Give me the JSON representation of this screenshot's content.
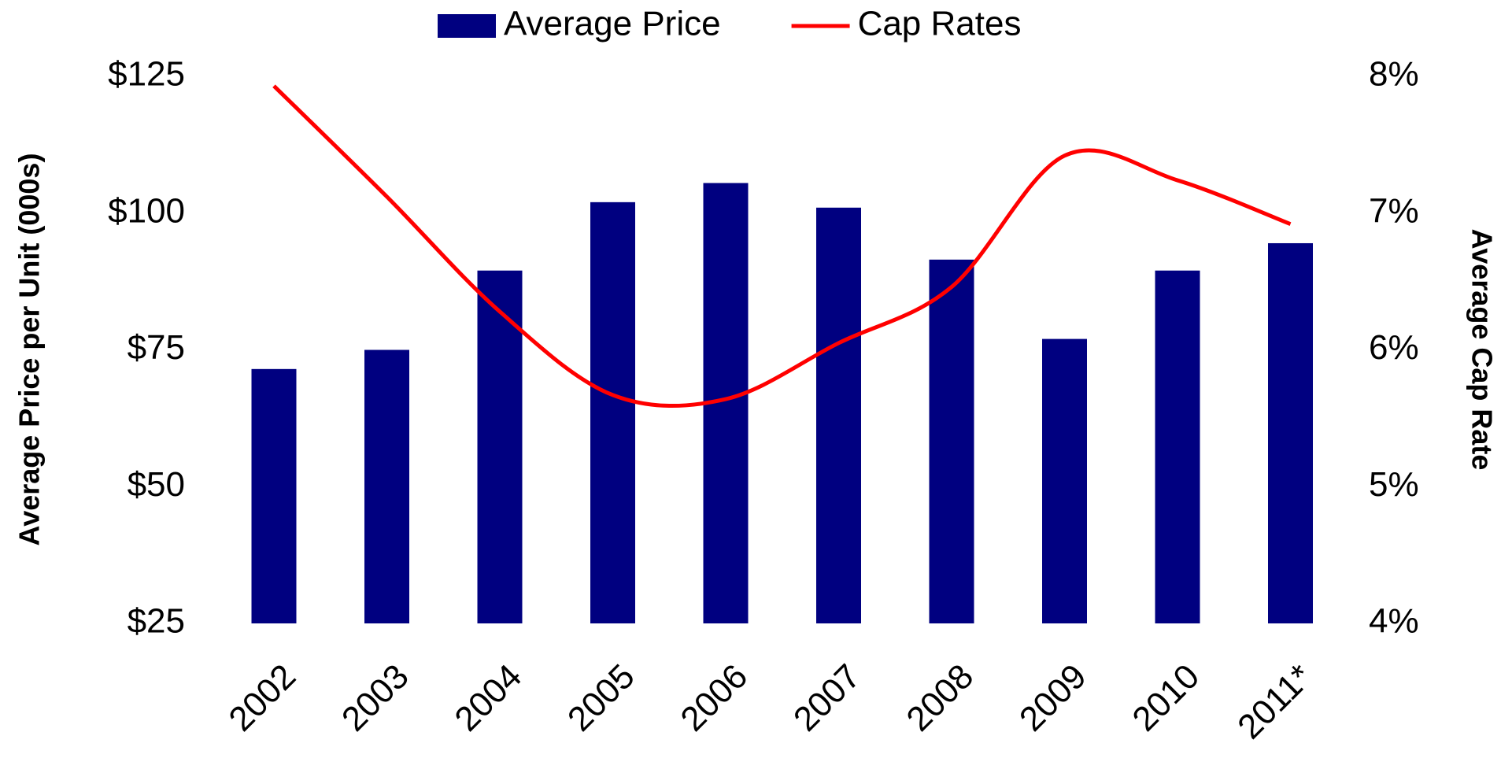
{
  "chart_data": {
    "type": "bar_line",
    "categories": [
      "2002",
      "2003",
      "2004",
      "2005",
      "2006",
      "2007",
      "2008",
      "2009",
      "2010",
      "2011*"
    ],
    "series": [
      {
        "name": "Average Price",
        "type": "bar",
        "color": "#000080",
        "values": [
          71.5,
          75,
          89.5,
          102,
          105.5,
          101,
          91.5,
          77,
          89.5,
          94.5
        ]
      },
      {
        "name": "Cap Rates",
        "type": "line",
        "axis": "y2",
        "color": "#ff0000",
        "values": [
          7.93,
          7.12,
          6.28,
          5.67,
          5.64,
          6.05,
          6.46,
          7.42,
          7.24,
          6.92
        ]
      }
    ],
    "y_label": "Average Price per Unit (000s)",
    "y2_label": "Average Cap Rate",
    "ylim": [
      25,
      125
    ],
    "yticks": [
      {
        "value": 25,
        "label": "$25"
      },
      {
        "value": 50,
        "label": "$50"
      },
      {
        "value": 75,
        "label": "$75"
      },
      {
        "value": 100,
        "label": "$100"
      },
      {
        "value": 125,
        "label": "$125"
      }
    ],
    "y2lim": [
      4,
      8
    ],
    "y2ticks": [
      {
        "value": 4,
        "label": "4%"
      },
      {
        "value": 5,
        "label": "5%"
      },
      {
        "value": 6,
        "label": "6%"
      },
      {
        "value": 7,
        "label": "7%"
      },
      {
        "value": 8,
        "label": "8%"
      }
    ],
    "grid": false,
    "legend": "top"
  }
}
